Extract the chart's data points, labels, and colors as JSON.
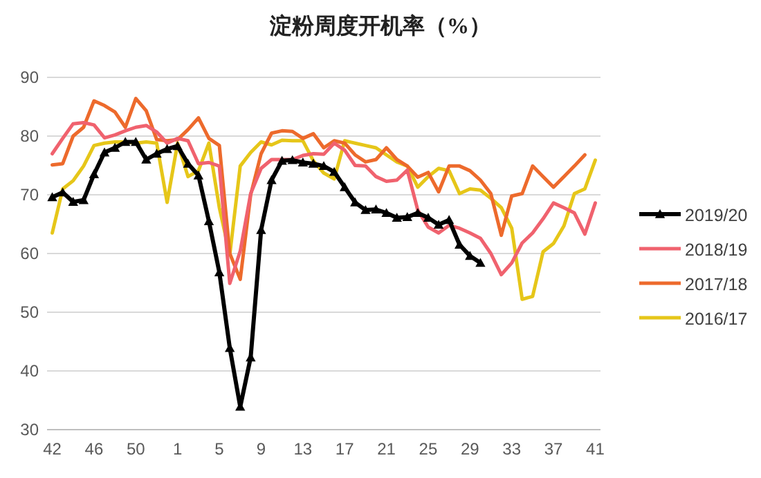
{
  "chart_data": {
    "type": "line",
    "title": "淀粉周度开机率（%）",
    "categories": [
      "42",
      null,
      null,
      null,
      "46",
      null,
      null,
      null,
      "50",
      null,
      null,
      null,
      "1",
      null,
      null,
      null,
      "5",
      null,
      null,
      null,
      "9",
      null,
      null,
      null,
      "13",
      null,
      null,
      null,
      "17",
      null,
      null,
      null,
      "21",
      null,
      null,
      null,
      "25",
      null,
      null,
      null,
      "29",
      null,
      null,
      null,
      "33",
      null,
      null,
      null,
      "37",
      null,
      null,
      null,
      "41"
    ],
    "ylim": [
      30,
      90
    ],
    "yticks": [
      30,
      40,
      50,
      60,
      70,
      80,
      90
    ],
    "grid": "y",
    "legend": "right",
    "series": [
      {
        "name": "2019/20",
        "color": "#000000",
        "marker": "triangle",
        "values": [
          69.6,
          70.4,
          68.8,
          69.1,
          73.5,
          77.2,
          78,
          79,
          79,
          76,
          77,
          77.8,
          78.3,
          75.3,
          73.3,
          65.5,
          56.8,
          43.9,
          33.9,
          42.3,
          64,
          72.5,
          75.8,
          75.9,
          75.5,
          75.3,
          74.9,
          73.9,
          71.3,
          68.7,
          67.4,
          67.5,
          66.9,
          66.1,
          66.2,
          66.9,
          66.1,
          64.9,
          65.7,
          61.5,
          59.6,
          58.4,
          null,
          null,
          null,
          null,
          null,
          null,
          null,
          null,
          null,
          null,
          null
        ]
      },
      {
        "name": "2018/19",
        "color": "#f0626e",
        "marker": "none",
        "values": [
          77,
          79.6,
          82.1,
          82.3,
          81.9,
          79.7,
          80.2,
          80.9,
          81.5,
          81.8,
          80.7,
          78.8,
          79.6,
          79.2,
          75.3,
          75.5,
          74.9,
          54.9,
          60.4,
          70.2,
          74.5,
          76,
          76,
          76,
          76.7,
          77,
          76.9,
          78.8,
          77.6,
          75,
          74.9,
          73.1,
          72.3,
          72.5,
          74.2,
          67.4,
          64.5,
          63.5,
          64.8,
          64.3,
          63.5,
          62.6,
          60,
          56.4,
          58.4,
          61.8,
          63.5,
          65.9,
          68.6,
          67.8,
          66.9,
          63.3,
          68.6
        ]
      },
      {
        "name": "2017/18",
        "color": "#ed6a2c",
        "marker": "none",
        "values": [
          75.1,
          75.3,
          80,
          81.5,
          86,
          85.2,
          84.1,
          81.5,
          86.4,
          84.3,
          79.4,
          79.2,
          79.4,
          81.1,
          83.1,
          79.6,
          78.4,
          60,
          55.6,
          70,
          77,
          80.5,
          80.9,
          80.8,
          79.6,
          80.4,
          78,
          79.2,
          78.8,
          76.8,
          75.6,
          76,
          78,
          76,
          74.9,
          73,
          73.8,
          70.5,
          74.9,
          74.9,
          74.1,
          72.5,
          70.2,
          63.1,
          69.8,
          70.2,
          74.9,
          73.1,
          71.3,
          73.1,
          74.9,
          76.8,
          null
        ]
      },
      {
        "name": "2016/17",
        "color": "#e6c619",
        "marker": "none",
        "values": [
          63.5,
          71,
          72.4,
          74.9,
          78.4,
          78.8,
          79,
          79,
          78.8,
          79,
          78.8,
          68.7,
          78.8,
          73.1,
          74.1,
          78.8,
          67.8,
          59.8,
          74.9,
          77.2,
          79,
          78.5,
          79.3,
          79.2,
          79.2,
          75.8,
          73.7,
          72.7,
          79.2,
          78.8,
          78.4,
          78,
          76.8,
          75.6,
          74.9,
          71.3,
          73.1,
          74.5,
          74.1,
          70.2,
          71,
          70.8,
          69.4,
          67.8,
          64.3,
          52.2,
          52.7,
          60.3,
          61.7,
          64.7,
          70.2,
          71,
          75.9
        ]
      }
    ]
  }
}
